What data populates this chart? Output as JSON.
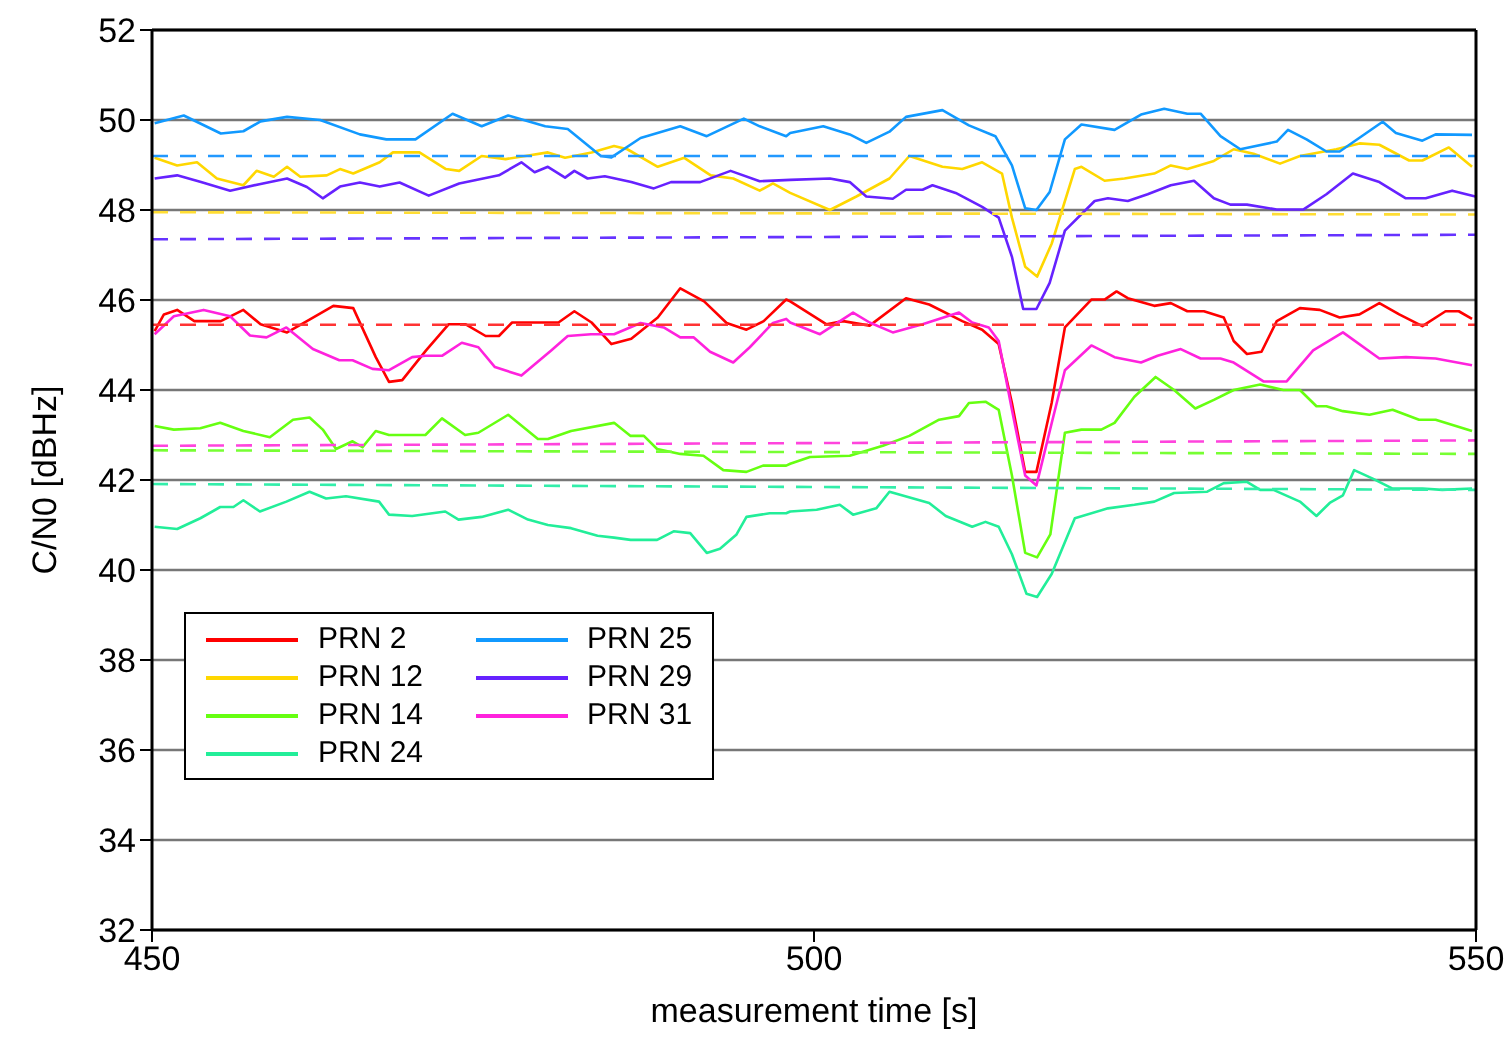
{
  "chart_data": {
    "type": "line",
    "xlabel": "measurement time [s]",
    "ylabel": "C/N0 [dBHz]",
    "xlim": [
      450,
      550
    ],
    "xticks": [
      450,
      500,
      550
    ],
    "ylim": [
      32,
      52
    ],
    "yticks": [
      32,
      34,
      36,
      38,
      40,
      42,
      44,
      46,
      48,
      50,
      52
    ],
    "grid": "y",
    "legend": "bottom left",
    "marker": "none",
    "series": [
      {
        "name": "PRN 2",
        "color": "#ff0000",
        "x": [
          450.2,
          450.9,
          451.9,
          453.2,
          455.2,
          456.9,
          458.2,
          460.2,
          461.7,
          463.7,
          465.2,
          466.9,
          467.9,
          468.9,
          470.7,
          472.4,
          473.7,
          475.2,
          476.2,
          477.2,
          478.7,
          480.7,
          481.9,
          483.2,
          484.7,
          486.2,
          488.2,
          489.9,
          491.7,
          493.4,
          494.9,
          496.2,
          497.9,
          498.2,
          500.95,
          502.2,
          504.2,
          506.95,
          508.7,
          511.2,
          512.7,
          513.95,
          514.95,
          515.95,
          516.8,
          517.95,
          518.95,
          520.95,
          521.95,
          522.85,
          523.7,
          525.7,
          526.95,
          528.2,
          529.45,
          530.95,
          531.7,
          532.7,
          533.8,
          534.95,
          536.7,
          538.2,
          539.7,
          541.2,
          542.7,
          544.2,
          545.95,
          547.7,
          548.7,
          549.7
        ],
        "values": [
          45.31,
          45.68,
          45.78,
          45.53,
          45.53,
          45.78,
          45.46,
          45.28,
          45.53,
          45.87,
          45.82,
          44.73,
          44.18,
          44.22,
          44.88,
          45.46,
          45.46,
          45.2,
          45.2,
          45.5,
          45.5,
          45.5,
          45.75,
          45.5,
          45.02,
          45.14,
          45.61,
          46.26,
          45.97,
          45.49,
          45.34,
          45.53,
          46.01,
          45.97,
          45.46,
          45.53,
          45.43,
          46.04,
          45.9,
          45.53,
          45.34,
          45.02,
          43.71,
          42.18,
          42.18,
          43.71,
          45.39,
          46.01,
          46.01,
          46.19,
          46.04,
          45.87,
          45.93,
          45.75,
          45.75,
          45.61,
          45.09,
          44.8,
          44.85,
          45.53,
          45.82,
          45.78,
          45.61,
          45.68,
          45.93,
          45.68,
          45.42,
          45.75,
          45.75,
          45.58
        ]
      },
      {
        "name": "PRN 12",
        "color": "#ffd700",
        "x": [
          450.2,
          451.9,
          453.4,
          454.9,
          456.9,
          457.9,
          459.2,
          460.2,
          461.2,
          463.2,
          464.2,
          465.2,
          467.2,
          468.2,
          470.2,
          472.2,
          473.2,
          474.9,
          476.7,
          478.2,
          479.9,
          481.2,
          483.2,
          484.9,
          485.9,
          488.2,
          490.2,
          492.2,
          493.9,
          495.9,
          496.9,
          498.2,
          501.2,
          503.2,
          505.7,
          507.2,
          509.7,
          511.2,
          512.7,
          514.2,
          514.95,
          515.95,
          516.85,
          517.95,
          519.7,
          520.2,
          521.95,
          523.45,
          525.7,
          526.95,
          528.2,
          530.2,
          531.7,
          533.2,
          535.2,
          536.7,
          539.45,
          541.2,
          542.7,
          544.95,
          545.95,
          547.95,
          549.7
        ],
        "values": [
          49.16,
          48.99,
          49.06,
          48.7,
          48.55,
          48.87,
          48.74,
          48.96,
          48.74,
          48.77,
          48.91,
          48.81,
          49.06,
          49.28,
          49.28,
          48.91,
          48.87,
          49.2,
          49.13,
          49.2,
          49.28,
          49.16,
          49.28,
          49.42,
          49.35,
          48.96,
          49.16,
          48.77,
          48.7,
          48.43,
          48.59,
          48.38,
          48.0,
          48.3,
          48.7,
          49.2,
          48.96,
          48.91,
          49.06,
          48.81,
          47.83,
          46.74,
          46.52,
          47.25,
          48.91,
          48.96,
          48.65,
          48.7,
          48.81,
          48.99,
          48.91,
          49.09,
          49.35,
          49.25,
          49.03,
          49.2,
          49.35,
          49.48,
          49.45,
          49.1,
          49.1,
          49.39,
          48.96
        ]
      },
      {
        "name": "PRN 14",
        "color": "#66ff11",
        "x": [
          450.2,
          451.65,
          453.65,
          455.15,
          456.9,
          458.9,
          460.65,
          461.9,
          462.9,
          463.9,
          465.15,
          465.9,
          466.9,
          467.9,
          470.65,
          471.9,
          473.65,
          474.65,
          476.9,
          479.15,
          479.9,
          481.65,
          484.9,
          486.15,
          487.15,
          488.15,
          489.9,
          491.65,
          493.15,
          494.9,
          496.15,
          497.9,
          498.2,
          499.7,
          502.7,
          505.2,
          507.2,
          509.45,
          510.95,
          511.7,
          512.95,
          513.95,
          514.95,
          515.95,
          516.85,
          517.85,
          518.95,
          520.2,
          521.7,
          522.7,
          524.2,
          525.8,
          527.2,
          528.8,
          530.2,
          531.7,
          533.7,
          535.45,
          536.7,
          537.95,
          538.7,
          539.95,
          541.95,
          543.7,
          545.7,
          546.95,
          549.7
        ],
        "values": [
          43.2,
          43.12,
          43.15,
          43.27,
          43.09,
          42.95,
          43.34,
          43.39,
          43.12,
          42.69,
          42.86,
          42.73,
          43.09,
          43.0,
          43.0,
          43.37,
          43.0,
          43.05,
          43.45,
          42.91,
          42.91,
          43.09,
          43.27,
          42.98,
          42.98,
          42.69,
          42.58,
          42.54,
          42.22,
          42.18,
          42.32,
          42.32,
          42.36,
          42.51,
          42.54,
          42.76,
          42.98,
          43.34,
          43.42,
          43.71,
          43.74,
          43.56,
          42.1,
          40.38,
          40.28,
          40.79,
          43.05,
          43.12,
          43.12,
          43.27,
          43.85,
          44.29,
          44.0,
          43.59,
          43.78,
          44.0,
          44.12,
          44.0,
          44.0,
          43.64,
          43.64,
          43.53,
          43.45,
          43.56,
          43.34,
          43.34,
          43.09
        ]
      },
      {
        "name": "PRN 24",
        "color": "#22ee99",
        "x": [
          450.2,
          451.9,
          453.65,
          455.15,
          456.15,
          456.9,
          458.15,
          460.15,
          461.9,
          463.15,
          464.65,
          467.15,
          467.9,
          469.65,
          472.15,
          473.15,
          474.9,
          476.9,
          478.4,
          479.9,
          481.65,
          483.65,
          484.9,
          486.15,
          488.15,
          489.4,
          490.65,
          491.9,
          492.9,
          494.15,
          494.9,
          496.65,
          497.9,
          498.2,
          500.2,
          501.95,
          502.95,
          504.7,
          505.7,
          508.7,
          509.95,
          511.95,
          512.95,
          513.95,
          514.95,
          516.05,
          516.85,
          517.95,
          519.7,
          522.2,
          524.2,
          525.7,
          527.2,
          529.7,
          530.95,
          532.7,
          533.7,
          534.7,
          536.7,
          537.95,
          538.95,
          539.95,
          540.8,
          542.2,
          543.7,
          545.95,
          547.45,
          549.7
        ],
        "values": [
          40.96,
          40.91,
          41.15,
          41.4,
          41.4,
          41.55,
          41.3,
          41.52,
          41.74,
          41.59,
          41.64,
          41.52,
          41.23,
          41.2,
          41.3,
          41.12,
          41.18,
          41.34,
          41.12,
          41.0,
          40.93,
          40.76,
          40.72,
          40.67,
          40.67,
          40.86,
          40.82,
          40.38,
          40.47,
          40.79,
          41.18,
          41.26,
          41.26,
          41.3,
          41.34,
          41.45,
          41.23,
          41.37,
          41.74,
          41.49,
          41.2,
          40.96,
          41.07,
          40.96,
          40.35,
          39.47,
          39.4,
          39.91,
          41.15,
          41.37,
          41.45,
          41.52,
          41.71,
          41.74,
          41.93,
          41.96,
          41.78,
          41.78,
          41.52,
          41.2,
          41.49,
          41.66,
          42.22,
          42.03,
          41.81,
          41.81,
          41.78,
          41.81
        ]
      },
      {
        "name": "PRN 25",
        "color": "#1199ff",
        "x": [
          450.2,
          452.4,
          455.2,
          456.9,
          458.2,
          460.2,
          462.7,
          465.7,
          467.7,
          469.9,
          472.7,
          474.9,
          476.9,
          479.7,
          481.4,
          483.9,
          484.7,
          486.9,
          489.9,
          491.9,
          494.7,
          495.9,
          497.9,
          498.2,
          500.7,
          502.7,
          503.95,
          505.7,
          506.95,
          509.7,
          511.7,
          513.7,
          514.95,
          515.95,
          516.8,
          517.8,
          518.95,
          520.2,
          522.7,
          524.7,
          526.45,
          528.2,
          529.2,
          530.7,
          532.2,
          534.95,
          535.8,
          537.2,
          538.7,
          539.7,
          542.95,
          543.95,
          545.95,
          546.95,
          549.7
        ],
        "values": [
          49.93,
          50.1,
          49.7,
          49.75,
          49.97,
          50.07,
          50.0,
          49.68,
          49.57,
          49.57,
          50.14,
          49.86,
          50.1,
          49.86,
          49.8,
          49.2,
          49.17,
          49.6,
          49.86,
          49.64,
          50.03,
          49.86,
          49.64,
          49.71,
          49.86,
          49.68,
          49.49,
          49.74,
          50.07,
          50.22,
          49.88,
          49.64,
          48.99,
          48.04,
          48.0,
          48.4,
          49.57,
          49.9,
          49.78,
          50.12,
          50.25,
          50.14,
          50.14,
          49.64,
          49.35,
          49.52,
          49.78,
          49.57,
          49.3,
          49.3,
          49.96,
          49.71,
          49.54,
          49.68,
          49.67
        ]
      },
      {
        "name": "PRN 29",
        "color": "#6622ff",
        "x": [
          450.2,
          451.9,
          453.7,
          455.9,
          458.2,
          460.2,
          461.7,
          462.9,
          464.2,
          465.7,
          467.2,
          468.7,
          470.9,
          473.2,
          476.2,
          477.9,
          478.9,
          479.9,
          481.2,
          481.9,
          482.9,
          484.2,
          486.2,
          487.9,
          489.2,
          491.4,
          493.7,
          495.9,
          498.2,
          501.2,
          502.7,
          503.95,
          505.95,
          506.95,
          508.2,
          508.95,
          510.7,
          512.7,
          513.95,
          514.95,
          515.8,
          516.8,
          517.8,
          518.95,
          521.2,
          522.2,
          523.7,
          525.2,
          526.95,
          528.7,
          530.2,
          531.45,
          532.7,
          534.95,
          536.95,
          538.7,
          540.7,
          542.7,
          544.7,
          546.2,
          548.2,
          549.95
        ],
        "values": [
          48.7,
          48.77,
          48.62,
          48.43,
          48.58,
          48.7,
          48.51,
          48.26,
          48.52,
          48.61,
          48.52,
          48.61,
          48.32,
          48.59,
          48.77,
          49.06,
          48.84,
          48.96,
          48.72,
          48.87,
          48.7,
          48.75,
          48.62,
          48.48,
          48.62,
          48.62,
          48.87,
          48.64,
          48.67,
          48.7,
          48.62,
          48.3,
          48.25,
          48.45,
          48.45,
          48.55,
          48.38,
          48.07,
          47.83,
          46.96,
          45.8,
          45.8,
          46.38,
          47.54,
          48.2,
          48.26,
          48.2,
          48.35,
          48.55,
          48.65,
          48.26,
          48.12,
          48.12,
          48.01,
          48.01,
          48.35,
          48.81,
          48.62,
          48.26,
          48.26,
          48.43,
          48.3
        ]
      },
      {
        "name": "PRN 31",
        "color": "#ff22dd",
        "x": [
          450.2,
          451.65,
          453.9,
          455.9,
          457.4,
          458.65,
          460.15,
          462.15,
          464.15,
          465.15,
          466.65,
          467.9,
          469.65,
          470.65,
          471.9,
          473.4,
          474.65,
          475.9,
          477.9,
          480.15,
          481.4,
          483.15,
          484.9,
          486.9,
          488.65,
          489.9,
          490.9,
          492.15,
          493.9,
          495.15,
          496.9,
          497.9,
          498.2,
          500.45,
          502.95,
          504.2,
          505.95,
          508.2,
          510.95,
          511.95,
          513.2,
          513.95,
          514.95,
          515.95,
          516.8,
          517.95,
          518.95,
          520.95,
          522.7,
          524.7,
          525.95,
          527.7,
          529.2,
          530.7,
          531.7,
          533.95,
          535.7,
          537.7,
          539.95,
          542.7,
          544.7,
          546.95,
          549.7
        ],
        "values": [
          45.24,
          45.64,
          45.78,
          45.64,
          45.21,
          45.17,
          45.39,
          44.91,
          44.66,
          44.66,
          44.47,
          44.44,
          44.73,
          44.76,
          44.76,
          45.05,
          44.95,
          44.51,
          44.32,
          44.88,
          45.2,
          45.24,
          45.24,
          45.49,
          45.39,
          45.17,
          45.17,
          44.85,
          44.61,
          44.95,
          45.49,
          45.58,
          45.5,
          45.24,
          45.72,
          45.5,
          45.28,
          45.46,
          45.72,
          45.5,
          45.39,
          45.09,
          43.56,
          42.1,
          41.88,
          43.26,
          44.44,
          44.99,
          44.73,
          44.61,
          44.76,
          44.91,
          44.7,
          44.7,
          44.61,
          44.19,
          44.19,
          44.88,
          45.28,
          44.7,
          44.73,
          44.7,
          44.55
        ]
      },
      {
        "color": "#ff3333",
        "line_style": "dashed",
        "x": [
          450,
          550
        ],
        "values": [
          45.45,
          45.45
        ]
      },
      {
        "color": "#ffdd33",
        "line_style": "dashed",
        "x": [
          450,
          550
        ],
        "values": [
          47.95,
          47.9
        ]
      },
      {
        "color": "#77ff33",
        "line_style": "dashed",
        "x": [
          450,
          550
        ],
        "values": [
          42.66,
          42.58
        ]
      },
      {
        "color": "#33eeaa",
        "line_style": "dashed",
        "x": [
          450,
          550
        ],
        "values": [
          41.91,
          41.78
        ]
      },
      {
        "color": "#2299ff",
        "line_style": "dashed",
        "x": [
          450,
          550
        ],
        "values": [
          49.2,
          49.2
        ]
      },
      {
        "color": "#6633ff",
        "line_style": "dashed",
        "x": [
          450,
          550
        ],
        "values": [
          47.35,
          47.45
        ]
      },
      {
        "color": "#ff44dd",
        "line_style": "dashed",
        "x": [
          450,
          550
        ],
        "values": [
          42.76,
          42.88
        ]
      }
    ]
  }
}
